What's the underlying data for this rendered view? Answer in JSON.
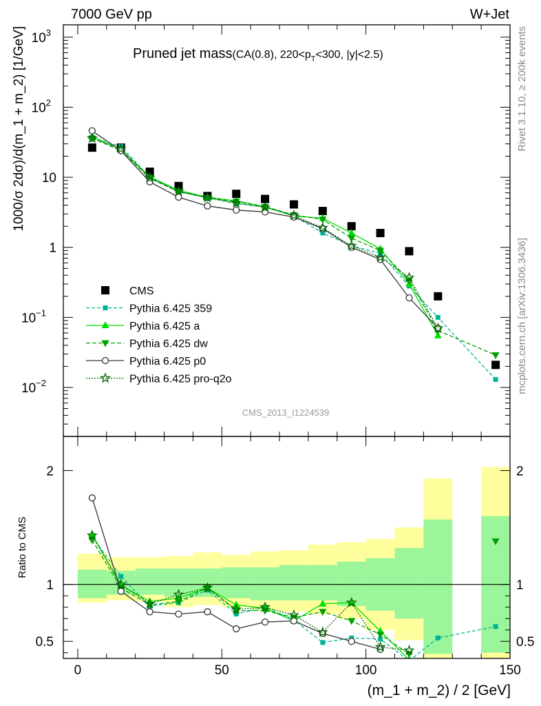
{
  "header": {
    "energy": "7000 GeV pp",
    "process": "W+Jet",
    "title_main": "Pruned jet mass",
    "title_sub_pre": "(CA(0.8), 220<p",
    "title_sub_T": "T",
    "title_sub_post": "<300, |y|<2.5)",
    "analysis_id": "CMS_2013_I1224539",
    "side_rivet": "Rivet 3.1.10, ≥ 200k events",
    "side_mcplots": "mcplots.cern.ch [arXiv:1306.3436]"
  },
  "chart_data": [
    {
      "type": "line",
      "ylabel": "1000/σ 2dσ)/d(m_1 + m_2) [1/GeV]",
      "yscale": "log",
      "ylim": [
        0.002,
        1500
      ],
      "xlim": [
        -5,
        150
      ],
      "yticks": [
        {
          "v": 0.01,
          "base": "10",
          "exp": "−2"
        },
        {
          "v": 0.1,
          "base": "10",
          "exp": "−1"
        },
        {
          "v": 1,
          "base": "1",
          "exp": ""
        },
        {
          "v": 10,
          "base": "10",
          "exp": ""
        },
        {
          "v": 100,
          "base": "10",
          "exp": "2"
        },
        {
          "v": 1000,
          "base": "10",
          "exp": "3"
        }
      ],
      "x": [
        5,
        15,
        25,
        35,
        45,
        55,
        65,
        75,
        85,
        95,
        105,
        115,
        125,
        145
      ],
      "series": [
        {
          "name": "CMS",
          "color": "#000000",
          "marker": "square",
          "dash": "none",
          "values": [
            26.5,
            26.5,
            12,
            7.5,
            5.4,
            5.8,
            4.9,
            4.1,
            3.3,
            2.0,
            1.6,
            0.88,
            0.2,
            0.021
          ]
        },
        {
          "name": "Pythia 6.425 359",
          "color": "#00b396",
          "marker": "smallsquare",
          "dash": "5,3",
          "values": [
            37,
            27.5,
            10,
            6.3,
            5.1,
            4.2,
            3.8,
            2.8,
            1.6,
            1.05,
            0.82,
            0.28,
            0.1,
            0.013
          ]
        },
        {
          "name": "Pythia 6.425 a",
          "color": "#00e000",
          "marker": "triangle-up",
          "dash": "none",
          "values": [
            38,
            25,
            10.2,
            6.5,
            5.2,
            4.6,
            3.8,
            2.8,
            2.6,
            1.6,
            0.95,
            0.3,
            0.055,
            null
          ]
        },
        {
          "name": "Pythia 6.425 dw",
          "color": "#00a000",
          "marker": "triangle-down",
          "dash": "6,3",
          "values": [
            36,
            24,
            9.7,
            6.2,
            5.1,
            4.5,
            3.8,
            2.9,
            2.5,
            1.35,
            0.9,
            0.34,
            0.065,
            0.029
          ]
        },
        {
          "name": "Pythia 6.425 p0",
          "color": "#333333",
          "marker": "circle",
          "dash": "none",
          "values": [
            46,
            24,
            8.6,
            5.2,
            3.9,
            3.4,
            3.2,
            2.7,
            1.85,
            1.0,
            0.67,
            0.19,
            0.07,
            null
          ]
        },
        {
          "name": "Pythia 6.425 pro-q2o",
          "color": "#006400",
          "marker": "star",
          "dash": "2,2",
          "values": [
            36,
            25.5,
            9.8,
            6.3,
            5.1,
            4.3,
            3.7,
            2.85,
            1.9,
            1.05,
            0.72,
            0.37,
            0.07,
            null
          ]
        }
      ],
      "legend": "bottom-left"
    },
    {
      "type": "line",
      "ylabel": "Ratio to CMS",
      "xlabel": "(m_1 + m_2) / 2 [GeV]",
      "ylim": [
        0.35,
        2.3
      ],
      "xlim": [
        -5,
        150
      ],
      "yticks": [
        0.5,
        1,
        2
      ],
      "xticks": [
        0,
        50,
        100,
        150
      ],
      "bands": [
        {
          "x0": 0,
          "x1": 10,
          "inner": [
            0.88,
            1.13
          ],
          "outer": [
            0.84,
            1.27
          ]
        },
        {
          "x0": 10,
          "x1": 20,
          "inner": [
            0.91,
            1.12
          ],
          "outer": [
            0.86,
            1.24
          ]
        },
        {
          "x0": 20,
          "x1": 30,
          "inner": [
            0.91,
            1.14
          ],
          "outer": [
            0.85,
            1.24
          ]
        },
        {
          "x0": 30,
          "x1": 40,
          "inner": [
            0.89,
            1.14
          ],
          "outer": [
            0.8,
            1.25
          ]
        },
        {
          "x0": 40,
          "x1": 50,
          "inner": [
            0.89,
            1.14
          ],
          "outer": [
            0.82,
            1.28
          ]
        },
        {
          "x0": 50,
          "x1": 60,
          "inner": [
            0.88,
            1.15
          ],
          "outer": [
            0.8,
            1.26
          ]
        },
        {
          "x0": 60,
          "x1": 70,
          "inner": [
            0.86,
            1.15
          ],
          "outer": [
            0.77,
            1.29
          ]
        },
        {
          "x0": 70,
          "x1": 80,
          "inner": [
            0.86,
            1.17
          ],
          "outer": [
            0.76,
            1.3
          ]
        },
        {
          "x0": 80,
          "x1": 90,
          "inner": [
            0.86,
            1.17
          ],
          "outer": [
            0.74,
            1.35
          ]
        },
        {
          "x0": 90,
          "x1": 100,
          "inner": [
            0.81,
            1.2
          ],
          "outer": [
            0.7,
            1.37
          ]
        },
        {
          "x0": 100,
          "x1": 110,
          "inner": [
            0.77,
            1.23
          ],
          "outer": [
            0.6,
            1.4
          ]
        },
        {
          "x0": 110,
          "x1": 120,
          "inner": [
            0.7,
            1.32
          ],
          "outer": [
            0.51,
            1.5
          ]
        },
        {
          "x0": 120,
          "x1": 130,
          "inner": [
            0.39,
            1.57
          ],
          "outer": [
            0.35,
            1.93
          ]
        },
        {
          "x0": 140,
          "x1": 150,
          "inner": [
            0.4,
            1.6
          ],
          "outer": [
            0.35,
            2.03
          ]
        }
      ],
      "series": [
        {
          "name": "Pythia 6.425 359",
          "color": "#00b396",
          "marker": "smallsquare",
          "dash": "5,3",
          "values": [
            1.42,
            1.07,
            0.81,
            0.84,
            0.95,
            0.74,
            0.8,
            0.69,
            0.49,
            0.53,
            0.52,
            0.33,
            0.53,
            0.63
          ]
        },
        {
          "name": "Pythia 6.425 a",
          "color": "#00e000",
          "marker": "triangle-up",
          "dash": "none",
          "values": [
            1.44,
            0.99,
            0.85,
            0.88,
            0.97,
            0.82,
            0.79,
            0.68,
            0.83,
            0.84,
            0.59,
            0.34,
            null,
            null
          ]
        },
        {
          "name": "Pythia 6.425 dw",
          "color": "#00a000",
          "marker": "triangle-down",
          "dash": "6,3",
          "values": [
            1.39,
            0.97,
            0.82,
            0.85,
            0.97,
            0.77,
            0.77,
            0.71,
            0.76,
            0.68,
            0.56,
            0.39,
            null,
            1.38
          ]
        },
        {
          "name": "Pythia 6.425 p0",
          "color": "#333333",
          "marker": "circle",
          "dash": "none",
          "values": [
            1.76,
            0.94,
            0.76,
            0.74,
            0.76,
            0.61,
            0.67,
            0.68,
            0.57,
            0.5,
            0.43,
            null,
            null,
            null
          ]
        },
        {
          "name": "Pythia 6.425 pro-q2o",
          "color": "#006400",
          "marker": "star",
          "dash": "2,2",
          "values": [
            1.43,
            1.0,
            0.83,
            0.91,
            0.97,
            0.78,
            0.8,
            0.73,
            0.58,
            0.84,
            0.45,
            0.42,
            null,
            null
          ]
        }
      ]
    }
  ],
  "colors": {
    "inner_band": "#9bf59b",
    "outer_band": "#fefe9c",
    "ref_line": "#000000"
  }
}
